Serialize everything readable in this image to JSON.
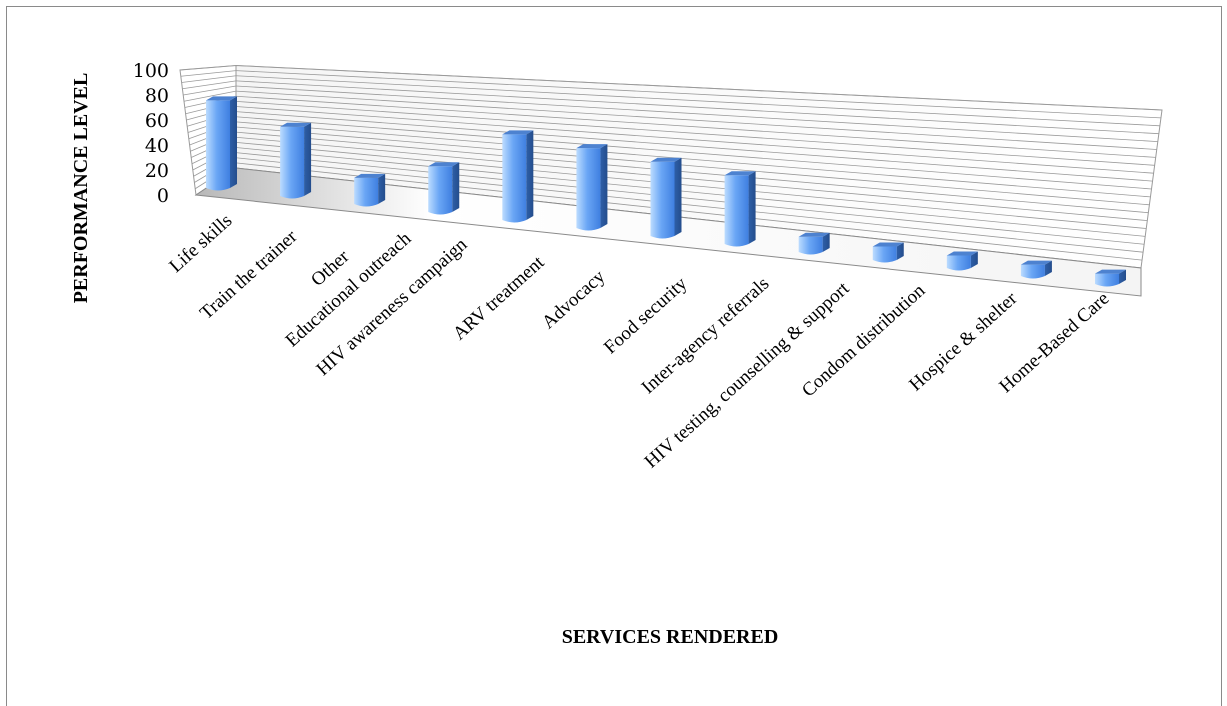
{
  "chart_data": {
    "type": "bar",
    "style": "3d-column",
    "xlabel": "SERVICES RENDERED",
    "ylabel": "PERFORMANCE LEVEL",
    "ylim": [
      0,
      100
    ],
    "yticks": [
      "0",
      "20",
      "40",
      "60",
      "80",
      "100"
    ],
    "categories": [
      "Life skills",
      "Train the trainer",
      "Other",
      "Educational outreach",
      "HIV awareness campaign",
      "ARV treatment",
      "Advocacy",
      "Food security",
      "Inter-agency referrals",
      "HIV testing, counselling & support",
      "Condom distribution",
      "Hospice & shelter",
      "Home-Based Care"
    ],
    "values": [
      76,
      63,
      25,
      46,
      91,
      90,
      89,
      88,
      21,
      20,
      20,
      20,
      20
    ],
    "grid": true,
    "bar_color": "#5b9bf5"
  }
}
